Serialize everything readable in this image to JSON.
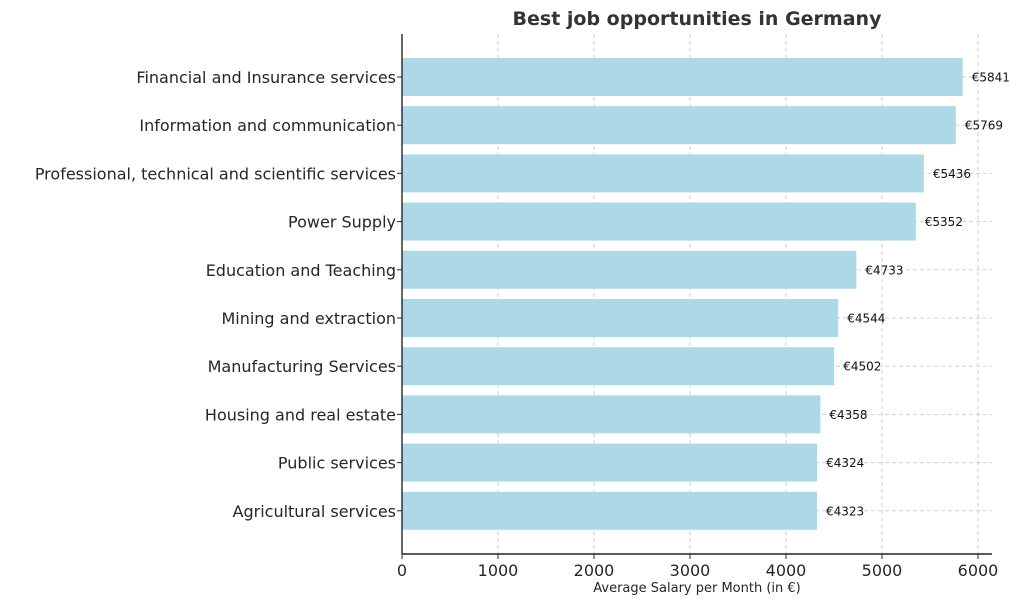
{
  "chart_data": {
    "type": "bar",
    "orientation": "horizontal",
    "title": "Best job opportunities in Germany",
    "xlabel": "Average Salary per Month (in €)",
    "ylabel": "",
    "xlim": [
      0,
      6100
    ],
    "xticks": [
      0,
      1000,
      2000,
      3000,
      4000,
      5000,
      6000
    ],
    "grid": true,
    "legend": null,
    "bar_color": "#add8e6",
    "value_prefix": "€",
    "categories": [
      "Financial and Insurance services",
      "Information and communication",
      "Professional, technical and scientific services",
      "Power Supply",
      "Education and Teaching",
      "Mining and extraction",
      "Manufacturing Services",
      "Housing and real estate",
      "Public services",
      "Agricultural services"
    ],
    "values": [
      5841,
      5769,
      5436,
      5352,
      4733,
      4544,
      4502,
      4358,
      4324,
      4323
    ],
    "value_labels": [
      "€5841",
      "€5769",
      "€5436",
      "€5352",
      "€4733",
      "€4544",
      "€4502",
      "€4358",
      "€4324",
      "€4323"
    ]
  }
}
